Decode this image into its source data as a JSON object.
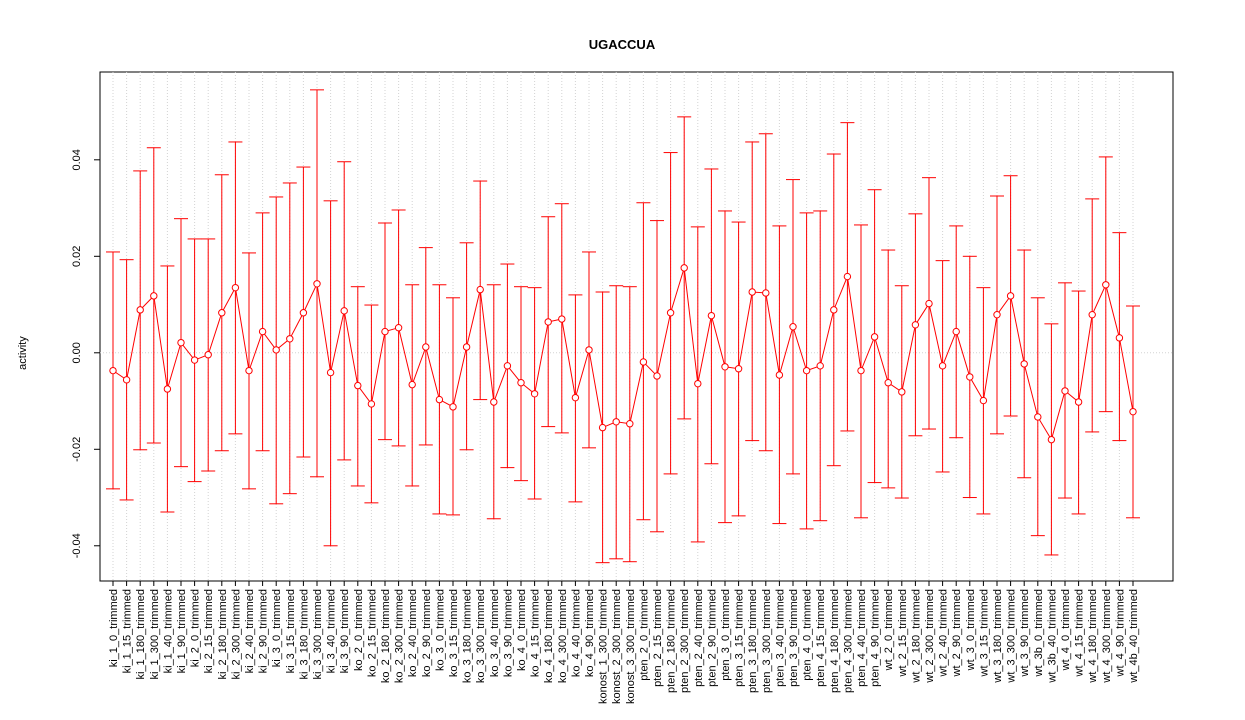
{
  "chart_data": {
    "type": "errorbar",
    "title": "UGACCUA",
    "y_label": "activity",
    "categories": [
      "ki_1_0_trimmed",
      "ki_1_15_trimmed",
      "ki_1_180_trimmed",
      "ki_1_300_trimmed",
      "ki_1_40_trimmed",
      "ki_1_90_trimmed",
      "ki_2_0_trimmed",
      "ki_2_15_trimmed",
      "ki_2_180_trimmed",
      "ki_2_300_trimmed",
      "ki_2_40_trimmed",
      "ki_2_90_trimmed",
      "ki_3_0_trimmed",
      "ki_3_15_trimmed",
      "ki_3_180_trimmed",
      "ki_3_300_trimmed",
      "ki_3_40_trimmed",
      "ki_3_90_trimmed",
      "ko_2_0_trimmed",
      "ko_2_15_trimmed",
      "ko_2_180_trimmed",
      "ko_2_300_trimmed",
      "ko_2_40_trimmed",
      "ko_2_90_trimmed",
      "ko_3_0_trimmed",
      "ko_3_15_trimmed",
      "ko_3_180_trimmed",
      "ko_3_300_trimmed",
      "ko_3_40_trimmed",
      "ko_3_90_trimmed",
      "ko_4_0_trimmed",
      "ko_4_15_trimmed",
      "ko_4_180_trimmed",
      "ko_4_300_trimmed",
      "ko_4_40_trimmed",
      "ko_4_90_trimmed",
      "konost_1_300_trimmed",
      "konost_2_300_trimmed",
      "konost_3_300_trimmed",
      "pten_2_0_trimmed",
      "pten_2_15_trimmed",
      "pten_2_180_trimmed",
      "pten_2_300_trimmed",
      "pten_2_40_trimmed",
      "pten_2_90_trimmed",
      "pten_3_0_trimmed",
      "pten_3_15_trimmed",
      "pten_3_180_trimmed",
      "pten_3_300_trimmed",
      "pten_3_40_trimmed",
      "pten_3_90_trimmed",
      "pten_4_0_trimmed",
      "pten_4_15_trimmed",
      "pten_4_180_trimmed",
      "pten_4_300_trimmed",
      "pten_4_40_trimmed",
      "pten_4_90_trimmed",
      "wt_2_0_trimmed",
      "wt_2_15_trimmed",
      "wt_2_180_trimmed",
      "wt_2_300_trimmed",
      "wt_2_40_trimmed",
      "wt_2_90_trimmed",
      "wt_3_0_trimmed",
      "wt_3_15_trimmed",
      "wt_3_180_trimmed",
      "wt_3_300_trimmed",
      "wt_3_90_trimmed",
      "wt_3b_0_trimmed",
      "wt_3b_40_trimmed",
      "wt_4_0_trimmed",
      "wt_4_15_trimmed",
      "wt_4_180_trimmed",
      "wt_4_300_trimmed",
      "wt_4_90_trimmed",
      "wt_4b_40_trimmed"
    ],
    "values": [
      -0.0037,
      -0.0056,
      0.0089,
      0.0118,
      -0.0075,
      0.0021,
      -0.0015,
      -0.0004,
      0.0083,
      0.0135,
      -0.0037,
      0.0044,
      0.0006,
      0.0029,
      0.0083,
      0.0143,
      -0.0041,
      0.0087,
      -0.0068,
      -0.0106,
      0.0044,
      0.0052,
      -0.0066,
      0.0012,
      -0.0097,
      -0.0112,
      0.0012,
      0.0131,
      -0.0102,
      -0.0027,
      -0.0062,
      -0.0085,
      0.0064,
      0.007,
      -0.0093,
      0.0006,
      -0.0155,
      -0.0143,
      -0.0147,
      -0.0019,
      -0.0048,
      0.0083,
      0.0176,
      -0.0064,
      0.0077,
      -0.0029,
      -0.0033,
      0.0126,
      0.0124,
      -0.0046,
      0.0054,
      -0.0037,
      -0.0027,
      0.0089,
      0.0158,
      -0.0037,
      0.0033,
      -0.0062,
      -0.0081,
      0.0058,
      0.0102,
      -0.0027,
      0.0044,
      -0.005,
      -0.0099,
      0.0079,
      0.0118,
      -0.0023,
      -0.0133,
      -0.018,
      -0.0079,
      -0.0102,
      0.0079,
      0.0141,
      0.0031,
      -0.0122
    ],
    "upper": [
      0.0209,
      0.0193,
      0.0377,
      0.0425,
      0.018,
      0.0278,
      0.0236,
      0.0236,
      0.0369,
      0.0437,
      0.0207,
      0.029,
      0.0323,
      0.0352,
      0.0385,
      0.0545,
      0.0315,
      0.0396,
      0.0137,
      0.0099,
      0.0269,
      0.0296,
      0.0141,
      0.0218,
      0.0141,
      0.0114,
      0.0228,
      0.0356,
      0.0141,
      0.0184,
      0.0137,
      0.0135,
      0.0282,
      0.0309,
      0.012,
      0.0209,
      0.0126,
      0.0139,
      0.0137,
      0.0311,
      0.0274,
      0.0415,
      0.0489,
      0.0261,
      0.0381,
      0.0294,
      0.0271,
      0.0437,
      0.0454,
      0.0263,
      0.0359,
      0.029,
      0.0294,
      0.0412,
      0.0477,
      0.0265,
      0.0338,
      0.0213,
      0.0139,
      0.0288,
      0.0363,
      0.0191,
      0.0263,
      0.02,
      0.0135,
      0.0325,
      0.0367,
      0.0213,
      0.0114,
      0.006,
      0.0145,
      0.0128,
      0.0319,
      0.0406,
      0.0249,
      0.0097
    ],
    "lower": [
      -0.0282,
      -0.0305,
      -0.0201,
      -0.0187,
      -0.033,
      -0.0236,
      -0.0267,
      -0.0245,
      -0.0203,
      -0.0168,
      -0.0282,
      -0.0203,
      -0.0313,
      -0.0292,
      -0.0216,
      -0.0257,
      -0.04,
      -0.0222,
      -0.0276,
      -0.0311,
      -0.018,
      -0.0193,
      -0.0276,
      -0.0191,
      -0.0334,
      -0.0336,
      -0.0201,
      -0.0097,
      -0.0344,
      -0.0238,
      -0.0265,
      -0.0303,
      -0.0153,
      -0.0166,
      -0.0309,
      -0.0197,
      -0.0435,
      -0.0427,
      -0.0433,
      -0.0346,
      -0.0371,
      -0.0251,
      -0.0137,
      -0.0392,
      -0.023,
      -0.0352,
      -0.0338,
      -0.0182,
      -0.0203,
      -0.0354,
      -0.0251,
      -0.0365,
      -0.0348,
      -0.0234,
      -0.0162,
      -0.0342,
      -0.0269,
      -0.028,
      -0.0301,
      -0.0172,
      -0.0158,
      -0.0247,
      -0.0176,
      -0.03,
      -0.0334,
      -0.0168,
      -0.0131,
      -0.0259,
      -0.0379,
      -0.0419,
      -0.0301,
      -0.0334,
      -0.0164,
      -0.0122,
      -0.0182,
      -0.0342
    ],
    "color": "#ff0000",
    "ylim": [
      -0.0473,
      0.0582
    ],
    "yticks": [
      -0.04,
      -0.02,
      {
        "value": 0,
        "label": "0.00"
      },
      0.02,
      0.04
    ],
    "reference_line": 0,
    "grid": true
  }
}
